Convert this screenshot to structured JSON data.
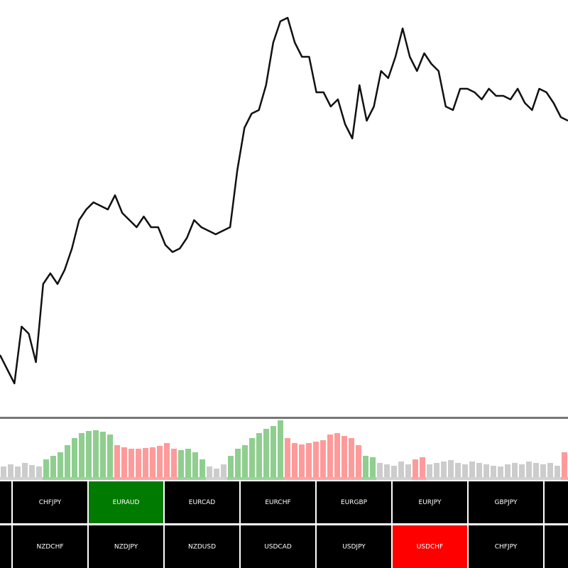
{
  "chart_data": {
    "type": "line",
    "color": "#111111",
    "values": [
      100,
      80,
      60,
      140,
      130,
      90,
      200,
      215,
      200,
      220,
      250,
      290,
      305,
      315,
      310,
      305,
      325,
      300,
      290,
      280,
      295,
      280,
      280,
      255,
      245,
      250,
      265,
      290,
      280,
      275,
      270,
      275,
      280,
      360,
      420,
      440,
      445,
      480,
      540,
      570,
      575,
      540,
      520,
      520,
      470,
      470,
      450,
      460,
      425,
      405,
      480,
      430,
      450,
      500,
      490,
      520,
      560,
      520,
      500,
      525,
      510,
      500,
      450,
      445,
      475,
      475,
      470,
      460,
      475,
      465,
      465,
      460,
      475,
      455,
      445,
      475,
      470,
      455,
      435,
      430
    ]
  },
  "histogram": {
    "type": "bar",
    "values": [
      15,
      18,
      15,
      20,
      17,
      15,
      25,
      30,
      35,
      45,
      55,
      62,
      65,
      66,
      64,
      60,
      45,
      42,
      40,
      40,
      41,
      42,
      44,
      48,
      40,
      38,
      40,
      35,
      25,
      15,
      12,
      18,
      30,
      40,
      45,
      55,
      62,
      68,
      72,
      80,
      55,
      48,
      46,
      48,
      50,
      52,
      60,
      62,
      58,
      55,
      45,
      30,
      28,
      20,
      18,
      16,
      22,
      18,
      25,
      28,
      18,
      20,
      22,
      24,
      20,
      18,
      22,
      20,
      18,
      16,
      15,
      18,
      20,
      18,
      22,
      20,
      18,
      20,
      16,
      35
    ],
    "colors": [
      "#cccccc",
      "#cccccc",
      "#cccccc",
      "#cccccc",
      "#cccccc",
      "#cccccc",
      "#8fce8f",
      "#8fce8f",
      "#8fce8f",
      "#8fce8f",
      "#8fce8f",
      "#8fce8f",
      "#8fce8f",
      "#8fce8f",
      "#8fce8f",
      "#8fce8f",
      "#ff9a9a",
      "#ff9a9a",
      "#ff9a9a",
      "#ff9a9a",
      "#ff9a9a",
      "#ff9a9a",
      "#ff9a9a",
      "#ff9a9a",
      "#ff9a9a",
      "#8fce8f",
      "#8fce8f",
      "#8fce8f",
      "#8fce8f",
      "#cccccc",
      "#cccccc",
      "#cccccc",
      "#8fce8f",
      "#8fce8f",
      "#8fce8f",
      "#8fce8f",
      "#8fce8f",
      "#8fce8f",
      "#8fce8f",
      "#8fce8f",
      "#ff9a9a",
      "#ff9a9a",
      "#ff9a9a",
      "#ff9a9a",
      "#ff9a9a",
      "#ff9a9a",
      "#ff9a9a",
      "#ff9a9a",
      "#ff9a9a",
      "#ff9a9a",
      "#ff9a9a",
      "#8fce8f",
      "#8fce8f",
      "#cccccc",
      "#cccccc",
      "#cccccc",
      "#cccccc",
      "#cccccc",
      "#ff9a9a",
      "#ff9a9a",
      "#cccccc",
      "#cccccc",
      "#cccccc",
      "#cccccc",
      "#cccccc",
      "#cccccc",
      "#cccccc",
      "#cccccc",
      "#cccccc",
      "#cccccc",
      "#cccccc",
      "#cccccc",
      "#cccccc",
      "#cccccc",
      "#cccccc",
      "#cccccc",
      "#cccccc",
      "#cccccc",
      "#cccccc",
      "#ff9a9a"
    ]
  },
  "buttons": {
    "rows": [
      [
        {
          "label": "CHFJPY",
          "background": "#000000"
        },
        {
          "label": "EURAUD",
          "background": "#007a00"
        },
        {
          "label": "EURCAD",
          "background": "#000000"
        },
        {
          "label": "EURCHF",
          "background": "#000000"
        },
        {
          "label": "EURGBP",
          "background": "#000000"
        },
        {
          "label": "EURJPY",
          "background": "#000000"
        },
        {
          "label": "GBPJPY",
          "background": "#000000"
        }
      ],
      [
        {
          "label": "NZDCHF",
          "background": "#000000"
        },
        {
          "label": "NZDJPY",
          "background": "#000000"
        },
        {
          "label": "NZDUSD",
          "background": "#000000"
        },
        {
          "label": "USDCAD",
          "background": "#000000"
        },
        {
          "label": "USDJPY",
          "background": "#000000"
        },
        {
          "label": "USDCHF",
          "background": "#ff0000"
        },
        {
          "label": "CHFJPY",
          "background": "#000000"
        }
      ]
    ]
  }
}
